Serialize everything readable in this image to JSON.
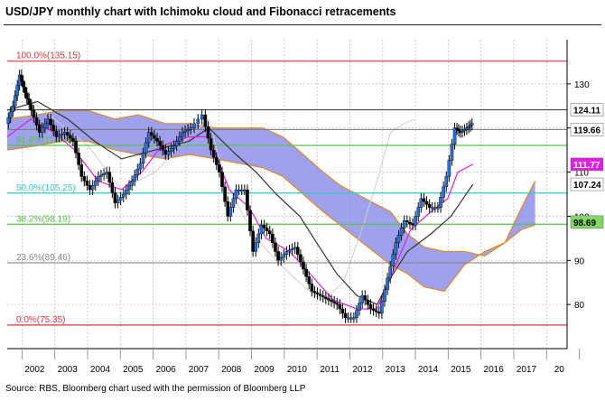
{
  "title": "USD/JPY monthly chart with Ichimoku cloud and Fibonacci retracements",
  "source": "Source: RBS, Bloomberg chart used with the permission of Bloomberg LLP",
  "chart_data": {
    "type": "line",
    "x_ticks": [
      "2002",
      "2003",
      "2004",
      "2005",
      "2006",
      "2007",
      "2008",
      "2009",
      "2010",
      "2011",
      "2012",
      "2013",
      "2014",
      "2015",
      "2016",
      "2017",
      "20"
    ],
    "y_ticks": [
      80,
      90,
      100,
      110,
      120,
      130
    ],
    "ylim": [
      70,
      140
    ],
    "grid": true,
    "fibonacci": [
      {
        "label": "100.0%(135.15)",
        "value": 135.15,
        "color": "#d9363e"
      },
      {
        "label": "61.8%(116.05)",
        "value": 116.05,
        "color": "#56c24a"
      },
      {
        "label": "50.0%(105.25)",
        "value": 105.25,
        "color": "#37c8c8"
      },
      {
        "label": "38.2%(98.19)",
        "value": 98.19,
        "color": "#56c24a"
      },
      {
        "label": "23.6%(89.46)",
        "value": 89.46,
        "color": "#888888"
      },
      {
        "label": "0.0%(75.35)",
        "value": 75.35,
        "color": "#d9363e"
      }
    ],
    "reference_lines": [
      {
        "value": 124.11,
        "color": "#333333"
      },
      {
        "value": 119.66,
        "color": "#777777"
      }
    ],
    "right_labels": [
      {
        "text": "124.11",
        "value": 124.11,
        "bg": "#ffffff",
        "fg": "#000000"
      },
      {
        "text": "119.66",
        "value": 119.66,
        "bg": "#ffffff",
        "fg": "#000000"
      },
      {
        "text": "111.77",
        "value": 111.77,
        "bg": "#e020e0",
        "fg": "#ffffff"
      },
      {
        "text": "107.24",
        "value": 107.24,
        "bg": "#ffffff",
        "fg": "#000000"
      },
      {
        "text": "98.69",
        "value": 98.69,
        "bg": "#7fd85f",
        "fg": "#000000"
      }
    ],
    "price": [
      {
        "x": 2001.6,
        "y": 121
      },
      {
        "x": 2001.8,
        "y": 125
      },
      {
        "x": 2002.0,
        "y": 132
      },
      {
        "x": 2002.15,
        "y": 128
      },
      {
        "x": 2002.35,
        "y": 124
      },
      {
        "x": 2002.6,
        "y": 119
      },
      {
        "x": 2002.85,
        "y": 122
      },
      {
        "x": 2003.1,
        "y": 118
      },
      {
        "x": 2003.35,
        "y": 119
      },
      {
        "x": 2003.6,
        "y": 117
      },
      {
        "x": 2003.85,
        "y": 109
      },
      {
        "x": 2004.1,
        "y": 106
      },
      {
        "x": 2004.35,
        "y": 109
      },
      {
        "x": 2004.6,
        "y": 110
      },
      {
        "x": 2004.85,
        "y": 103
      },
      {
        "x": 2005.1,
        "y": 105
      },
      {
        "x": 2005.35,
        "y": 108
      },
      {
        "x": 2005.6,
        "y": 112
      },
      {
        "x": 2005.85,
        "y": 119
      },
      {
        "x": 2006.1,
        "y": 117
      },
      {
        "x": 2006.35,
        "y": 114
      },
      {
        "x": 2006.6,
        "y": 116
      },
      {
        "x": 2006.85,
        "y": 119
      },
      {
        "x": 2007.1,
        "y": 120
      },
      {
        "x": 2007.45,
        "y": 123
      },
      {
        "x": 2007.7,
        "y": 115
      },
      {
        "x": 2007.95,
        "y": 110
      },
      {
        "x": 2008.2,
        "y": 100
      },
      {
        "x": 2008.45,
        "y": 106
      },
      {
        "x": 2008.7,
        "y": 106
      },
      {
        "x": 2008.95,
        "y": 92
      },
      {
        "x": 2009.2,
        "y": 98
      },
      {
        "x": 2009.45,
        "y": 96
      },
      {
        "x": 2009.7,
        "y": 90
      },
      {
        "x": 2009.95,
        "y": 92
      },
      {
        "x": 2010.2,
        "y": 93
      },
      {
        "x": 2010.45,
        "y": 88
      },
      {
        "x": 2010.7,
        "y": 83
      },
      {
        "x": 2010.95,
        "y": 82
      },
      {
        "x": 2011.2,
        "y": 81
      },
      {
        "x": 2011.45,
        "y": 80
      },
      {
        "x": 2011.7,
        "y": 77
      },
      {
        "x": 2011.95,
        "y": 77
      },
      {
        "x": 2012.2,
        "y": 82
      },
      {
        "x": 2012.45,
        "y": 79
      },
      {
        "x": 2012.7,
        "y": 78
      },
      {
        "x": 2012.95,
        "y": 86
      },
      {
        "x": 2013.2,
        "y": 94
      },
      {
        "x": 2013.45,
        "y": 99
      },
      {
        "x": 2013.7,
        "y": 98
      },
      {
        "x": 2013.95,
        "y": 104
      },
      {
        "x": 2014.2,
        "y": 102
      },
      {
        "x": 2014.45,
        "y": 102
      },
      {
        "x": 2014.7,
        "y": 109
      },
      {
        "x": 2014.95,
        "y": 120
      },
      {
        "x": 2015.1,
        "y": 119
      },
      {
        "x": 2015.3,
        "y": 120
      },
      {
        "x": 2015.45,
        "y": 121
      }
    ],
    "ma_fast": [
      {
        "x": 2001.6,
        "y": 118
      },
      {
        "x": 2002.3,
        "y": 122
      },
      {
        "x": 2003.0,
        "y": 119
      },
      {
        "x": 2003.6,
        "y": 115
      },
      {
        "x": 2004.3,
        "y": 108
      },
      {
        "x": 2005.0,
        "y": 106
      },
      {
        "x": 2005.6,
        "y": 110
      },
      {
        "x": 2006.2,
        "y": 116
      },
      {
        "x": 2007.0,
        "y": 118
      },
      {
        "x": 2007.6,
        "y": 118
      },
      {
        "x": 2008.2,
        "y": 106
      },
      {
        "x": 2008.8,
        "y": 102
      },
      {
        "x": 2009.3,
        "y": 95
      },
      {
        "x": 2010.0,
        "y": 92
      },
      {
        "x": 2010.6,
        "y": 87
      },
      {
        "x": 2011.3,
        "y": 81
      },
      {
        "x": 2012.0,
        "y": 79
      },
      {
        "x": 2012.6,
        "y": 79
      },
      {
        "x": 2013.1,
        "y": 88
      },
      {
        "x": 2013.6,
        "y": 97
      },
      {
        "x": 2014.2,
        "y": 101
      },
      {
        "x": 2014.7,
        "y": 104
      },
      {
        "x": 2015.0,
        "y": 110
      },
      {
        "x": 2015.45,
        "y": 111.77
      }
    ],
    "ma_slow": [
      {
        "x": 2001.6,
        "y": 124
      },
      {
        "x": 2002.5,
        "y": 126
      },
      {
        "x": 2003.4,
        "y": 122
      },
      {
        "x": 2004.2,
        "y": 117
      },
      {
        "x": 2005.0,
        "y": 113
      },
      {
        "x": 2006.0,
        "y": 115
      },
      {
        "x": 2007.0,
        "y": 117
      },
      {
        "x": 2007.6,
        "y": 120
      },
      {
        "x": 2008.4,
        "y": 114
      },
      {
        "x": 2009.0,
        "y": 110
      },
      {
        "x": 2009.6,
        "y": 105
      },
      {
        "x": 2010.3,
        "y": 100
      },
      {
        "x": 2010.8,
        "y": 94
      },
      {
        "x": 2011.4,
        "y": 87
      },
      {
        "x": 2012.0,
        "y": 82
      },
      {
        "x": 2012.6,
        "y": 80
      },
      {
        "x": 2013.0,
        "y": 86
      },
      {
        "x": 2013.5,
        "y": 92
      },
      {
        "x": 2014.2,
        "y": 96
      },
      {
        "x": 2014.8,
        "y": 100
      },
      {
        "x": 2015.45,
        "y": 107.24
      }
    ],
    "lagging": [
      {
        "x": 2002.0,
        "y": 128
      },
      {
        "x": 2003.0,
        "y": 122
      },
      {
        "x": 2004.0,
        "y": 116
      },
      {
        "x": 2005.0,
        "y": 106
      },
      {
        "x": 2006.0,
        "y": 110
      },
      {
        "x": 2007.0,
        "y": 118
      },
      {
        "x": 2007.6,
        "y": 122
      },
      {
        "x": 2008.0,
        "y": 110
      },
      {
        "x": 2008.5,
        "y": 102
      },
      {
        "x": 2009.0,
        "y": 95
      },
      {
        "x": 2009.6,
        "y": 90
      },
      {
        "x": 2010.0,
        "y": 87
      },
      {
        "x": 2010.6,
        "y": 83
      },
      {
        "x": 2011.0,
        "y": 81
      },
      {
        "x": 2011.6,
        "y": 85
      },
      {
        "x": 2012.1,
        "y": 96
      },
      {
        "x": 2012.6,
        "y": 108
      },
      {
        "x": 2013.0,
        "y": 119
      },
      {
        "x": 2013.4,
        "y": 121
      },
      {
        "x": 2013.7,
        "y": 122
      }
    ],
    "cloud": {
      "upper": [
        {
          "x": 2001.6,
          "y": 122
        },
        {
          "x": 2002.5,
          "y": 123
        },
        {
          "x": 2003.2,
          "y": 124
        },
        {
          "x": 2004.0,
          "y": 124
        },
        {
          "x": 2004.8,
          "y": 122
        },
        {
          "x": 2005.5,
          "y": 123
        },
        {
          "x": 2006.3,
          "y": 121
        },
        {
          "x": 2007.0,
          "y": 121
        },
        {
          "x": 2007.8,
          "y": 120
        },
        {
          "x": 2008.5,
          "y": 120
        },
        {
          "x": 2009.2,
          "y": 120
        },
        {
          "x": 2009.8,
          "y": 118
        },
        {
          "x": 2010.4,
          "y": 114
        },
        {
          "x": 2011.0,
          "y": 110
        },
        {
          "x": 2011.5,
          "y": 107
        },
        {
          "x": 2012.0,
          "y": 105
        },
        {
          "x": 2012.5,
          "y": 103
        },
        {
          "x": 2013.0,
          "y": 101
        },
        {
          "x": 2013.5,
          "y": 96
        },
        {
          "x": 2014.0,
          "y": 93
        },
        {
          "x": 2014.6,
          "y": 92
        },
        {
          "x": 2015.2,
          "y": 92
        },
        {
          "x": 2015.8,
          "y": 91
        },
        {
          "x": 2016.4,
          "y": 94
        },
        {
          "x": 2016.9,
          "y": 102
        },
        {
          "x": 2017.3,
          "y": 108
        }
      ],
      "lower": [
        {
          "x": 2001.6,
          "y": 115
        },
        {
          "x": 2002.5,
          "y": 116
        },
        {
          "x": 2003.2,
          "y": 117
        },
        {
          "x": 2004.0,
          "y": 117
        },
        {
          "x": 2004.8,
          "y": 115
        },
        {
          "x": 2005.5,
          "y": 114
        },
        {
          "x": 2006.3,
          "y": 113
        },
        {
          "x": 2007.0,
          "y": 114
        },
        {
          "x": 2007.8,
          "y": 113
        },
        {
          "x": 2008.5,
          "y": 112
        },
        {
          "x": 2009.2,
          "y": 111
        },
        {
          "x": 2009.8,
          "y": 109
        },
        {
          "x": 2010.4,
          "y": 105
        },
        {
          "x": 2011.0,
          "y": 101
        },
        {
          "x": 2011.5,
          "y": 98
        },
        {
          "x": 2012.0,
          "y": 95
        },
        {
          "x": 2012.5,
          "y": 92
        },
        {
          "x": 2013.0,
          "y": 89
        },
        {
          "x": 2013.5,
          "y": 87
        },
        {
          "x": 2014.0,
          "y": 84
        },
        {
          "x": 2014.6,
          "y": 83
        },
        {
          "x": 2015.2,
          "y": 89
        },
        {
          "x": 2015.8,
          "y": 92
        },
        {
          "x": 2016.4,
          "y": 94
        },
        {
          "x": 2016.9,
          "y": 97
        },
        {
          "x": 2017.3,
          "y": 98
        }
      ]
    },
    "colors": {
      "price": "#1f4e9c",
      "ma_fast": "#e020e0",
      "ma_slow": "#333333",
      "lagging": "#cfcfcf",
      "cloud_fill": "#8f90ea",
      "cloud_edge": "#e08a2a",
      "grid": "#cccccc",
      "axis": "#000000"
    }
  }
}
